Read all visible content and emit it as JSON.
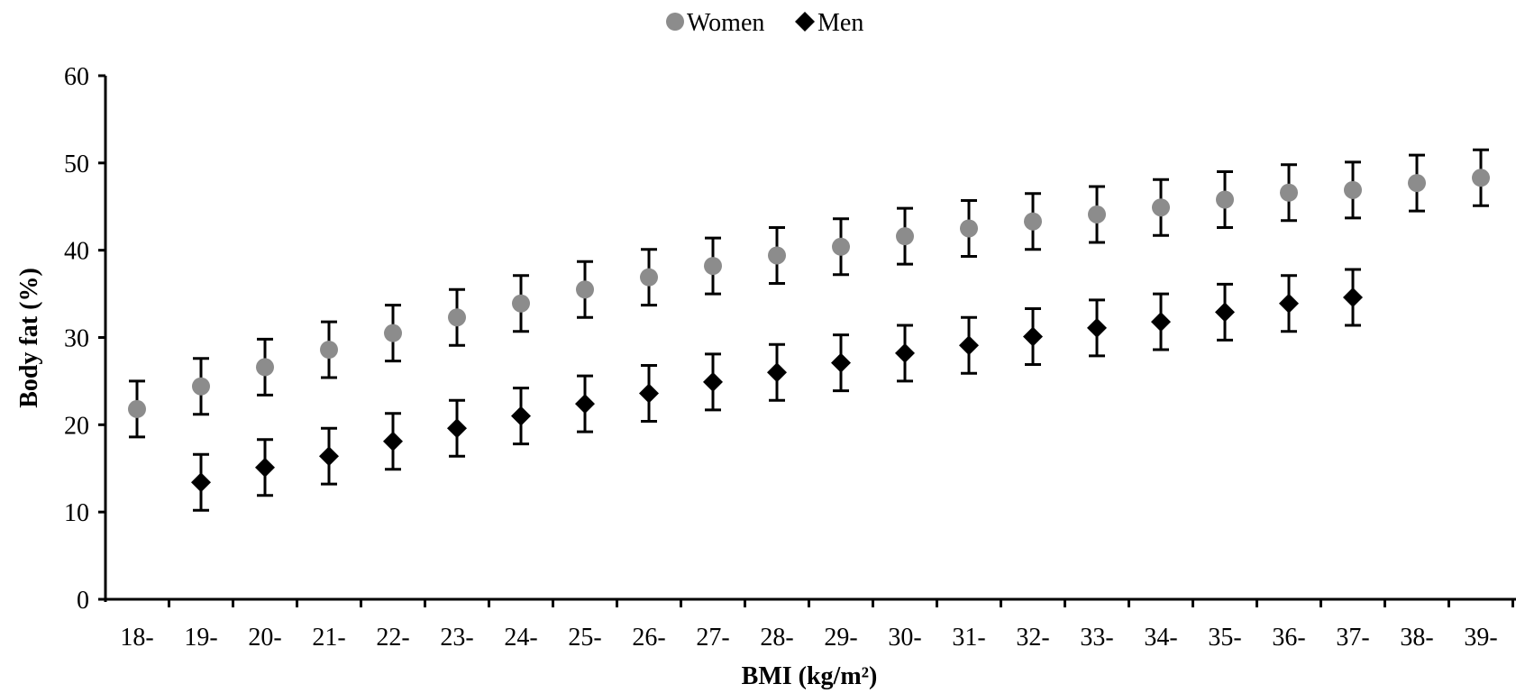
{
  "chart_data": {
    "type": "scatter",
    "categories": [
      "18-",
      "19-",
      "20-",
      "21-",
      "22-",
      "23-",
      "24-",
      "25-",
      "26-",
      "27-",
      "28-",
      "29-",
      "30-",
      "31-",
      "32-",
      "33-",
      "34-",
      "35-",
      "36-",
      "37-",
      "38-",
      "39-"
    ],
    "xlabel": "BMI (kg/m²)",
    "ylabel": "Body fat (%)",
    "ylim": [
      0,
      60
    ],
    "yticks": [
      0,
      10,
      20,
      30,
      40,
      50,
      60
    ],
    "legend_position": "top-center",
    "error_bar_sd": 3.2,
    "series": [
      {
        "name": "Women",
        "marker": "circle",
        "color": "#8c8c8c",
        "values": [
          21.8,
          24.4,
          26.6,
          28.6,
          30.5,
          32.3,
          33.9,
          35.5,
          36.9,
          38.2,
          39.4,
          40.4,
          41.6,
          42.5,
          43.3,
          44.1,
          44.9,
          45.8,
          46.6,
          46.9,
          47.7,
          48.3
        ]
      },
      {
        "name": "Men",
        "marker": "diamond",
        "color": "#000000",
        "values": [
          null,
          13.4,
          15.1,
          16.4,
          18.1,
          19.6,
          21.0,
          22.4,
          23.6,
          24.9,
          26.0,
          27.1,
          28.2,
          29.1,
          30.1,
          31.1,
          31.8,
          32.9,
          33.9,
          34.6,
          null,
          null
        ]
      }
    ]
  }
}
